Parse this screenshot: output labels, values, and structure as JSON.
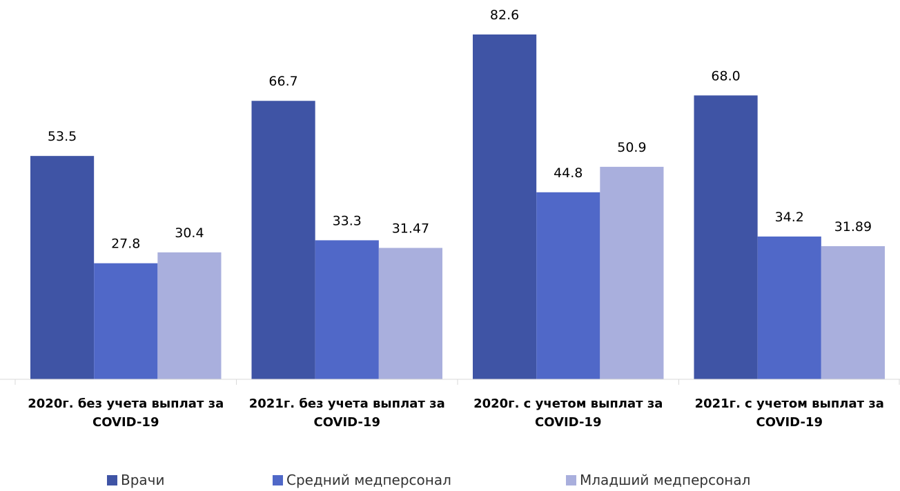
{
  "chart_data": {
    "type": "bar",
    "categories": [
      "2020г. без учета выплат за COVID-19",
      "2021г. без учета выплат за COVID-19",
      "2020г. с учетом выплат за COVID-19",
      "2021г. с учетом выплат за COVID-19"
    ],
    "series": [
      {
        "name": "Врачи",
        "color": "#3f54a5",
        "values": [
          53.5,
          66.7,
          82.6,
          68
        ],
        "value_labels": [
          "53.5",
          "66.7",
          "82.6",
          "68.0"
        ]
      },
      {
        "name": "Средний медперсонал",
        "color": "#5068c8",
        "values": [
          27.8,
          33.3,
          44.8,
          34.2
        ],
        "value_labels": [
          "27.8",
          "33.3",
          "44.8",
          "34.2"
        ]
      },
      {
        "name": "Младший медперсонал",
        "color": "#a9afdd",
        "values": [
          30.4,
          31.47,
          50.9,
          31.89
        ],
        "value_labels": [
          "30.4",
          "31.47",
          "50.9",
          "31.89"
        ]
      }
    ],
    "legend": "bottom"
  }
}
